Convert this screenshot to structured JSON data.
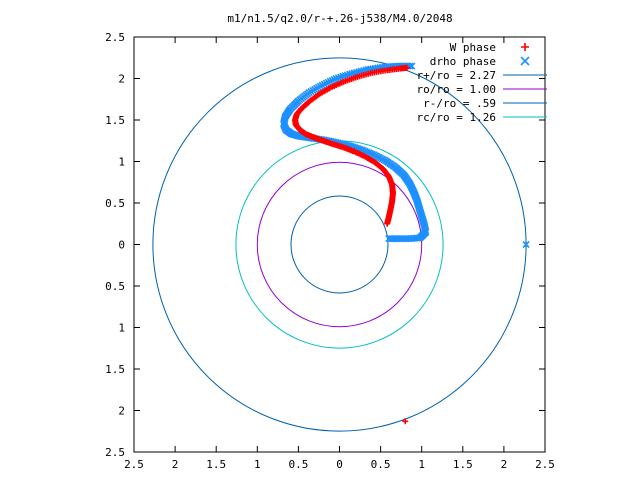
{
  "chart_data": {
    "type": "scatter",
    "title": "m1/n1.5/q2.0/r-+.26-j538/M4.0/2048",
    "xlabel": "",
    "ylabel": "",
    "xlim": [
      -2.5,
      2.5
    ],
    "ylim": [
      -2.5,
      2.5
    ],
    "x_tick_values": [
      -2.5,
      -2,
      -1.5,
      -1,
      -0.5,
      0,
      0.5,
      1,
      1.5,
      2,
      2.5
    ],
    "x_tick_labels": [
      "2.5",
      "2",
      "1.5",
      "1",
      "0.5",
      "0",
      "0.5",
      "1",
      "1.5",
      "2",
      "2.5"
    ],
    "y_tick_values": [
      2.5,
      2,
      1.5,
      1,
      0.5,
      0,
      -0.5,
      -1,
      -1.5,
      -2,
      -2.5
    ],
    "y_tick_labels": [
      "2.5",
      "2",
      "1.5",
      "1",
      "0.5",
      "0",
      "0.5",
      "1",
      "1.5",
      "2",
      "2.5"
    ],
    "grid": false,
    "legend_position": "top-right",
    "series": [
      {
        "name": "W phase",
        "kind": "points",
        "marker": "plus",
        "color": "#ff0000",
        "points": [
          [
            0.58,
            0.25
          ],
          [
            0.6,
            0.33
          ],
          [
            0.62,
            0.42
          ],
          [
            0.64,
            0.52
          ],
          [
            0.65,
            0.62
          ],
          [
            0.64,
            0.72
          ],
          [
            0.6,
            0.82
          ],
          [
            0.53,
            0.91
          ],
          [
            0.43,
            0.99
          ],
          [
            0.31,
            1.06
          ],
          [
            0.18,
            1.12
          ],
          [
            0.05,
            1.17
          ],
          [
            -0.08,
            1.21
          ],
          [
            -0.2,
            1.25
          ],
          [
            -0.31,
            1.29
          ],
          [
            -0.41,
            1.33
          ],
          [
            -0.48,
            1.38
          ],
          [
            -0.53,
            1.44
          ],
          [
            -0.54,
            1.5
          ],
          [
            -0.52,
            1.57
          ],
          [
            -0.46,
            1.64
          ],
          [
            -0.37,
            1.72
          ],
          [
            -0.25,
            1.81
          ],
          [
            -0.11,
            1.89
          ],
          [
            0.05,
            1.96
          ],
          [
            0.22,
            2.02
          ],
          [
            0.4,
            2.07
          ],
          [
            0.58,
            2.1
          ],
          [
            0.74,
            2.12
          ],
          [
            0.82,
            2.13
          ],
          [
            0.8,
            -2.13
          ]
        ]
      },
      {
        "name": "drho phase",
        "kind": "points",
        "marker": "x",
        "color": "#1e90ff",
        "points": [
          [
            0.6,
            0.07
          ],
          [
            0.72,
            0.07
          ],
          [
            0.85,
            0.07
          ],
          [
            0.98,
            0.08
          ],
          [
            1.05,
            0.15
          ],
          [
            1.03,
            0.24
          ],
          [
            1.0,
            0.34
          ],
          [
            0.97,
            0.44
          ],
          [
            0.94,
            0.54
          ],
          [
            0.9,
            0.64
          ],
          [
            0.85,
            0.74
          ],
          [
            0.78,
            0.84
          ],
          [
            0.68,
            0.93
          ],
          [
            0.56,
            1.01
          ],
          [
            0.42,
            1.08
          ],
          [
            0.27,
            1.14
          ],
          [
            0.12,
            1.19
          ],
          [
            -0.04,
            1.23
          ],
          [
            -0.19,
            1.26
          ],
          [
            -0.33,
            1.28
          ],
          [
            -0.47,
            1.3
          ],
          [
            -0.58,
            1.33
          ],
          [
            -0.65,
            1.38
          ],
          [
            -0.68,
            1.45
          ],
          [
            -0.66,
            1.54
          ],
          [
            -0.6,
            1.63
          ],
          [
            -0.5,
            1.73
          ],
          [
            -0.37,
            1.83
          ],
          [
            -0.21,
            1.92
          ],
          [
            -0.04,
            2.0
          ],
          [
            0.15,
            2.06
          ],
          [
            0.35,
            2.11
          ],
          [
            0.55,
            2.14
          ],
          [
            0.72,
            2.15
          ],
          [
            0.88,
            2.15
          ],
          [
            2.27,
            0.0
          ]
        ]
      },
      {
        "name": "r+/ro = 2.27",
        "kind": "circle",
        "radius": 2.27,
        "color": "#0060ad"
      },
      {
        "name": "ro/ro = 1.00",
        "kind": "circle",
        "radius": 1.0,
        "color": "#9400d3"
      },
      {
        "name": "r-/ro = .59",
        "kind": "circle",
        "radius": 0.59,
        "color": "#0060ad"
      },
      {
        "name": "rc/ro = 1.26",
        "kind": "circle",
        "radius": 1.26,
        "color": "#00c0c0"
      }
    ]
  }
}
